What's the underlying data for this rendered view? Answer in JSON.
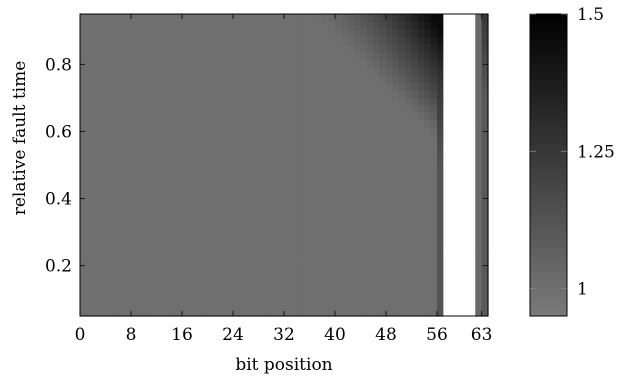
{
  "chart_data": {
    "type": "heatmap",
    "xlabel": "bit position",
    "ylabel": "relative fault time",
    "x_ticks": [
      "0",
      "8",
      "16",
      "24",
      "32",
      "40",
      "48",
      "56",
      "63"
    ],
    "x_tick_values": [
      0,
      8,
      16,
      24,
      32,
      40,
      48,
      56,
      63
    ],
    "y_ticks": [
      "0.2",
      "0.4",
      "0.6",
      "0.8"
    ],
    "y_tick_values": [
      0.2,
      0.4,
      0.6,
      0.8
    ],
    "xlim": [
      0,
      64
    ],
    "ylim": [
      0.05,
      0.95
    ],
    "colorbar": {
      "ticks": [
        "1",
        "1.25",
        "1.5"
      ],
      "tick_values": [
        1,
        1.25,
        1.5
      ],
      "range": [
        0.95,
        1.5
      ],
      "colormap": "gray-to-black"
    },
    "baseline_value": 1.0,
    "missing_columns": [
      57,
      58,
      59,
      60,
      61
    ],
    "grid": false,
    "legend": "none"
  }
}
